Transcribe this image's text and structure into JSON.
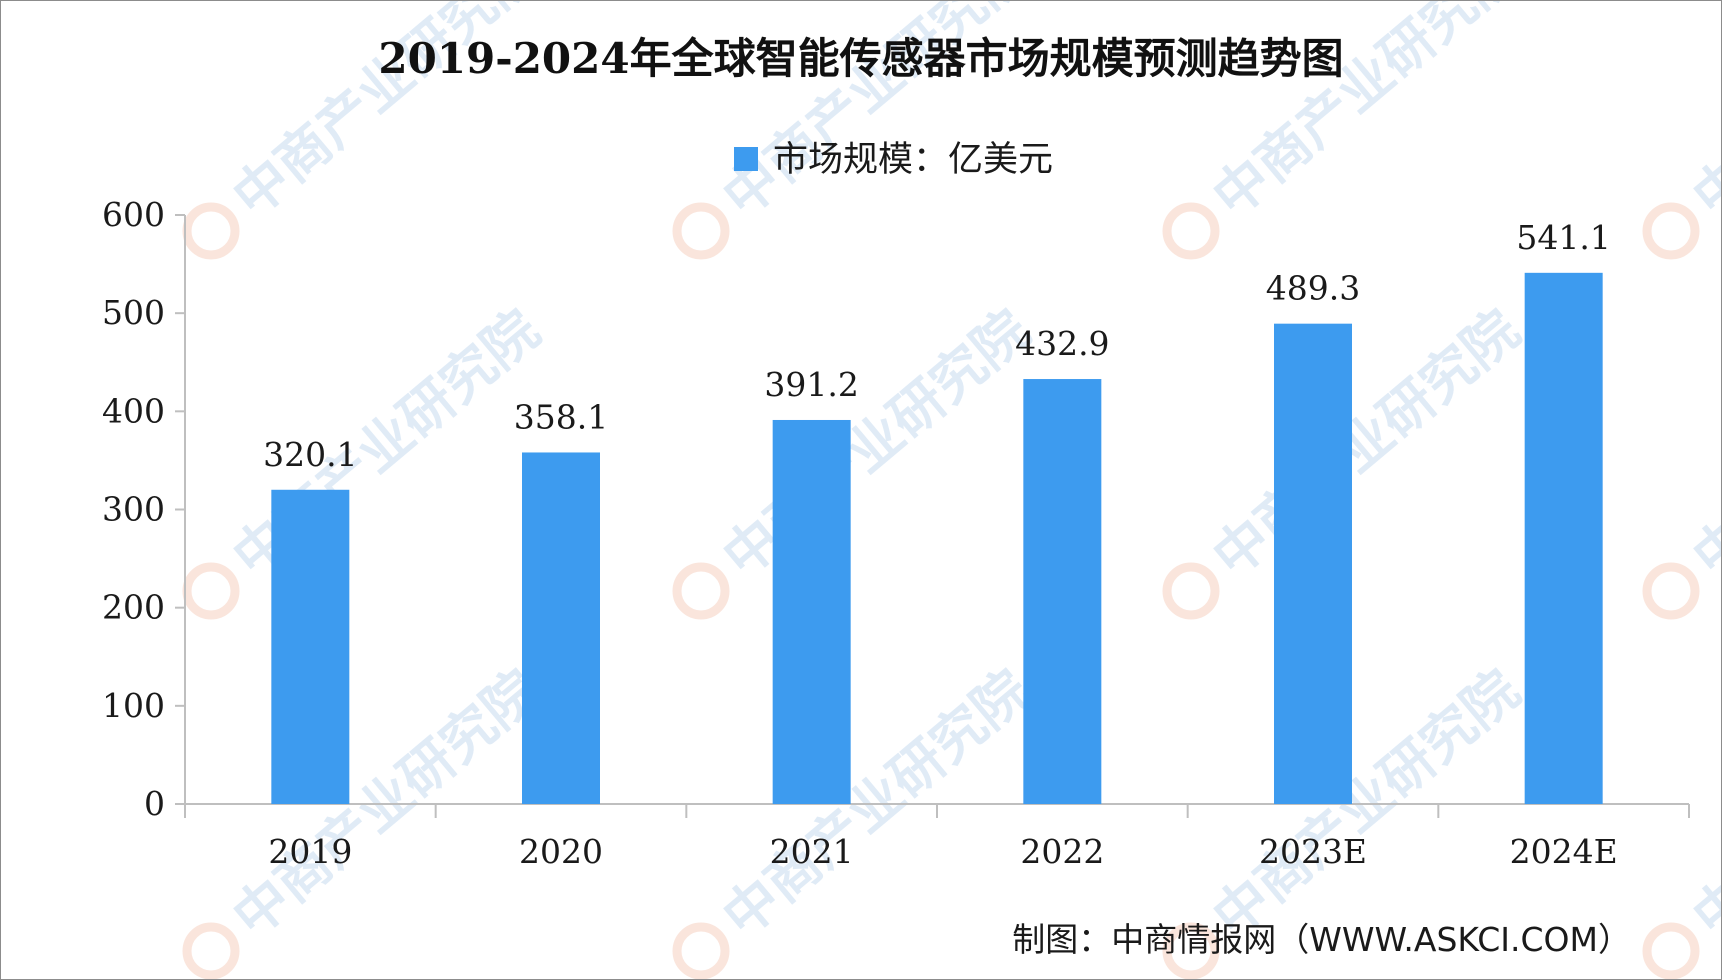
{
  "chart_data": {
    "type": "bar",
    "title": "2019-2024年全球智能传感器市场规模预测趋势图",
    "categories": [
      "2019",
      "2020",
      "2021",
      "2022",
      "2023E",
      "2024E"
    ],
    "series": [
      {
        "name": "市场规模：亿美元",
        "values": [
          320.1,
          358.1,
          391.2,
          432.9,
          489.3,
          541.1
        ],
        "labels": [
          "320.1",
          "358.1",
          "391.2",
          "432.9",
          "489.3",
          "541.1"
        ],
        "color": "#3d9bef"
      }
    ],
    "ylim": [
      0,
      600
    ],
    "yticks": [
      "0",
      "100",
      "200",
      "300",
      "400",
      "500",
      "600"
    ],
    "xlabel": "",
    "ylabel": "",
    "grid": false,
    "legend_position": "top-center"
  },
  "source": "制图：中商情报网（WWW.ASKCI.COM）",
  "watermark": "中商产业研究院",
  "colors": {
    "bar": "#3d9bef",
    "axis": "#bfbfbf",
    "watermark": "#a8c8e8"
  }
}
